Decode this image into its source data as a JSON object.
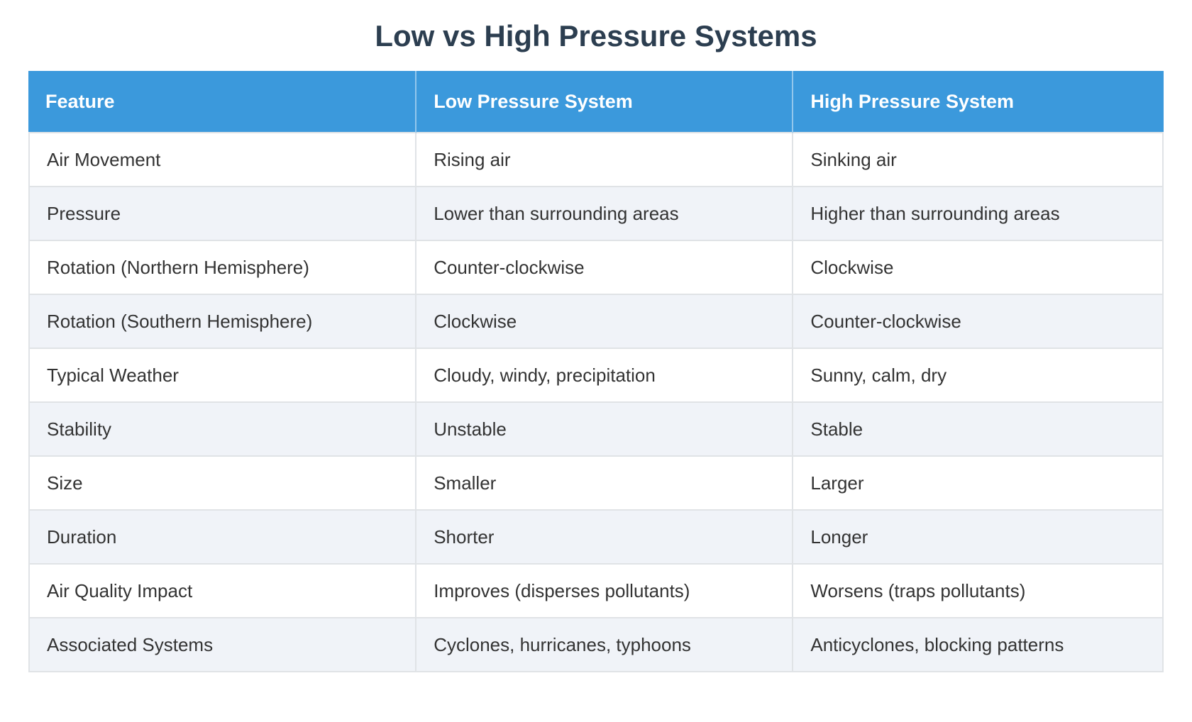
{
  "chart_data": {
    "type": "table",
    "title": "Low vs High Pressure Systems",
    "columns": [
      "Feature",
      "Low Pressure System",
      "High Pressure System"
    ],
    "rows": [
      [
        "Air Movement",
        "Rising air",
        "Sinking air"
      ],
      [
        "Pressure",
        "Lower than surrounding areas",
        "Higher than surrounding areas"
      ],
      [
        "Rotation (Northern Hemisphere)",
        "Counter-clockwise",
        "Clockwise"
      ],
      [
        "Rotation (Southern Hemisphere)",
        "Clockwise",
        "Counter-clockwise"
      ],
      [
        "Typical Weather",
        "Cloudy, windy, precipitation",
        "Sunny, calm, dry"
      ],
      [
        "Stability",
        "Unstable",
        "Stable"
      ],
      [
        "Size",
        "Smaller",
        "Larger"
      ],
      [
        "Duration",
        "Shorter",
        "Longer"
      ],
      [
        "Air Quality Impact",
        "Improves (disperses pollutants)",
        "Worsens (traps pollutants)"
      ],
      [
        "Associated Systems",
        "Cyclones, hurricanes, typhoons",
        "Anticyclones, blocking patterns"
      ]
    ],
    "layout": {
      "column_width_percents": [
        34.2,
        33.2,
        32.6
      ],
      "striped_rows": true,
      "legend_position": "none"
    }
  },
  "colors": {
    "page_bg": "#ffffff",
    "title_color": "#2c3e50",
    "header_bg": "#3b99dc",
    "header_text": "#ffffff",
    "body_text": "#333333",
    "row_bg": "#ffffff",
    "row_alt_bg": "#f0f3f8",
    "border_color": "#e0e3e6"
  }
}
